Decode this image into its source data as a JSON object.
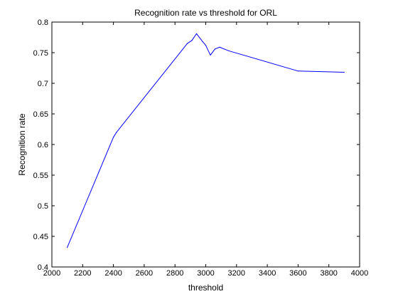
{
  "chart_data": {
    "type": "line",
    "title": "Recognition rate vs threshold for ORL",
    "xlabel": "threshold",
    "ylabel": "Recognition rate",
    "xlim": [
      2000,
      4000
    ],
    "ylim": [
      0.4,
      0.8
    ],
    "xticks": [
      2000,
      2200,
      2400,
      2600,
      2800,
      3000,
      3200,
      3400,
      3600,
      3800,
      4000
    ],
    "yticks": [
      0.4,
      0.45,
      0.5,
      0.55,
      0.6,
      0.65,
      0.7,
      0.75,
      0.8
    ],
    "xtick_labels": [
      "2000",
      "2200",
      "2400",
      "2600",
      "2800",
      "3000",
      "3200",
      "3400",
      "3600",
      "3800",
      "4000"
    ],
    "ytick_labels": [
      "0.4",
      "0.45",
      "0.5",
      "0.55",
      "0.6",
      "0.65",
      "0.7",
      "0.75",
      "0.8"
    ],
    "grid": false,
    "series": [
      {
        "color": "#0000ff",
        "x": [
          2100,
          2400,
          2420,
          2880,
          2910,
          2940,
          2980,
          3000,
          3030,
          3060,
          3090,
          3150,
          3600,
          3900
        ],
        "y": [
          0.432,
          0.612,
          0.62,
          0.765,
          0.77,
          0.781,
          0.768,
          0.762,
          0.746,
          0.756,
          0.759,
          0.753,
          0.72,
          0.718
        ]
      }
    ]
  }
}
